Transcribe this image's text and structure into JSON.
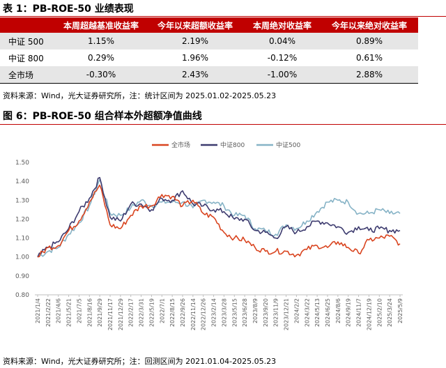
{
  "table": {
    "title": "表 1：PB-ROE-50 业绩表现",
    "headers": [
      "",
      "本周超越基准收益率",
      "今年以来超额收益率",
      "本周绝对收益率",
      "今年以来绝对收益率"
    ],
    "rows": [
      {
        "name": "中证 500",
        "values": [
          "1.15%",
          "2.19%",
          "0.04%",
          "0.89%"
        ]
      },
      {
        "name": "中证 800",
        "values": [
          "0.29%",
          "1.96%",
          "-0.12%",
          "0.61%"
        ]
      },
      {
        "name": "全市场",
        "values": [
          "-0.30%",
          "2.43%",
          "-1.00%",
          "2.88%"
        ]
      }
    ],
    "source": "资料来源：Wind，光大证券研究所，注：统计区间为 2025.01.02-2025.05.23"
  },
  "figure": {
    "title": "图 6：PB-ROE-50 组合样本外超额净值曲线",
    "source": "资料来源：Wind，光大证券研究所；注：回测区间为 2021.01.04-2025.05.23"
  },
  "chart_data": {
    "type": "line",
    "title": "",
    "xlabel": "",
    "ylabel": "",
    "ylim": [
      0.8,
      1.5
    ],
    "yticks": [
      "0.80",
      "0.90",
      "1.00",
      "1.10",
      "1.20",
      "1.30",
      "1.40",
      "1.50"
    ],
    "grid": false,
    "legend_position": "top-center",
    "x_tick_labels": [
      "2021/1/4",
      "2021/2/22",
      "2021/4/6",
      "2021/5/21",
      "2021/7/5",
      "2021/8/16",
      "2021/9/29",
      "2021/11/17",
      "2021/12/29",
      "2022/2/17",
      "2022/3/31",
      "2022/5/19",
      "2022/7/1",
      "2022/8/15",
      "2022/9/26",
      "2022/11/14",
      "2022/12/26",
      "2023/2/14",
      "2023/3/28",
      "2023/5/15",
      "2023/6/28",
      "2023/8/9",
      "2023/9/20",
      "2023/11/9",
      "2023/12/21",
      "2024/2/2",
      "2024/3/22",
      "2024/5/13",
      "2024/6/25",
      "2024/8/6",
      "2024/9/19",
      "2024/11/7",
      "2024/12/19",
      "2025/2/10",
      "2025/3/24",
      "2025/5/9"
    ],
    "series": [
      {
        "name": "全市场",
        "color": "#d9441f",
        "values": [
          1.0,
          1.05,
          1.06,
          1.14,
          1.19,
          1.29,
          1.38,
          1.17,
          1.15,
          1.22,
          1.27,
          1.27,
          1.33,
          1.32,
          1.27,
          1.3,
          1.23,
          1.21,
          1.13,
          1.1,
          1.09,
          1.05,
          1.03,
          1.03,
          1.03,
          1.01,
          1.04,
          1.06,
          1.05,
          1.08,
          1.05,
          1.02,
          1.09,
          1.1,
          1.11,
          1.07
        ]
      },
      {
        "name": "中证800",
        "color": "#3c3a6e",
        "values": [
          1.0,
          1.05,
          1.08,
          1.15,
          1.24,
          1.31,
          1.42,
          1.21,
          1.19,
          1.28,
          1.28,
          1.25,
          1.31,
          1.3,
          1.35,
          1.28,
          1.27,
          1.25,
          1.24,
          1.2,
          1.2,
          1.14,
          1.13,
          1.1,
          1.16,
          1.13,
          1.16,
          1.19,
          1.18,
          1.16,
          1.13,
          1.16,
          1.14,
          1.15,
          1.14,
          1.14
        ]
      },
      {
        "name": "中证500",
        "color": "#86b3c6",
        "values": [
          1.0,
          1.03,
          1.05,
          1.12,
          1.18,
          1.27,
          1.41,
          1.23,
          1.22,
          1.26,
          1.3,
          1.27,
          1.29,
          1.29,
          1.29,
          1.26,
          1.3,
          1.29,
          1.27,
          1.22,
          1.22,
          1.15,
          1.14,
          1.12,
          1.17,
          1.15,
          1.19,
          1.24,
          1.29,
          1.3,
          1.29,
          1.23,
          1.23,
          1.25,
          1.23,
          1.23
        ]
      }
    ]
  }
}
